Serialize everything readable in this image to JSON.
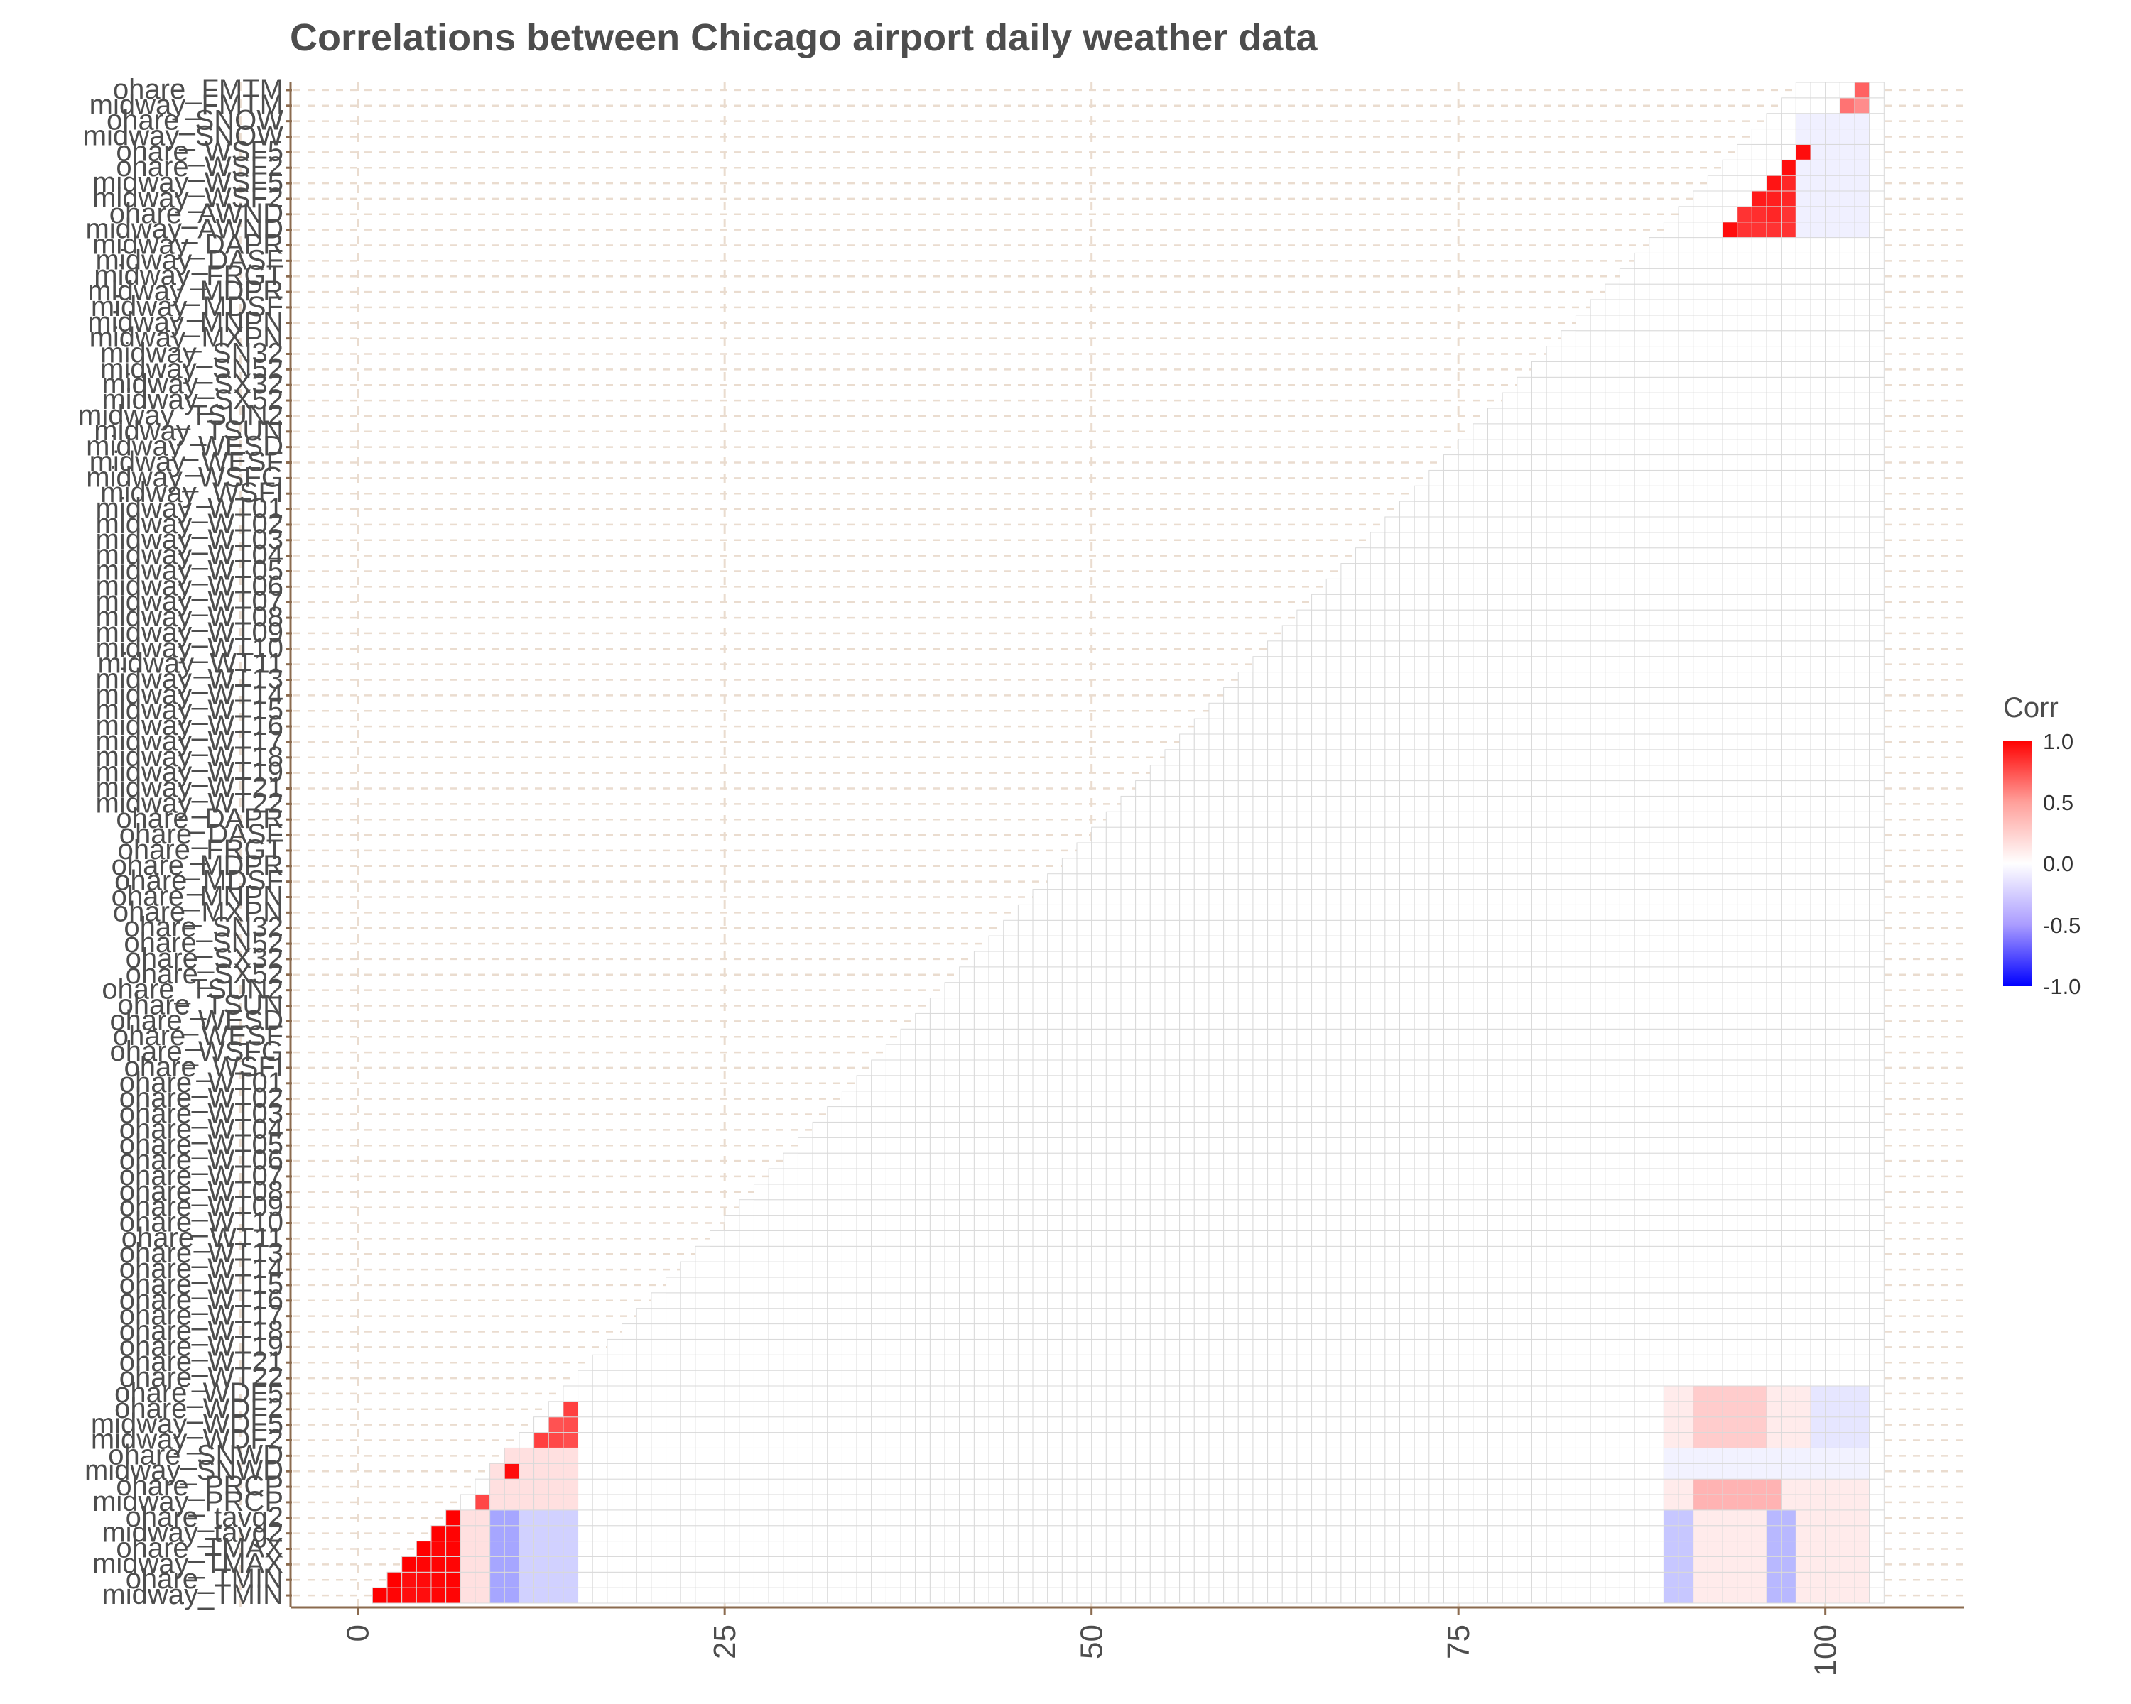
{
  "title": "Correlations between Chicago airport daily weather data",
  "chart_data": {
    "type": "heatmap",
    "title": "Correlations between Chicago airport daily weather data",
    "xlabel": "",
    "ylabel": "",
    "x_ticks": [
      0,
      25,
      50,
      75,
      100
    ],
    "xlim": [
      -4,
      107
    ],
    "y_labels": [
      "midway_TMIN",
      "ohare_TMIN",
      "midway_TMAX",
      "ohare_TMAX",
      "midway_tavg2",
      "ohare_tavg2",
      "midway_PRCP",
      "ohare_PRCP",
      "midway_SNWD",
      "ohare_SNWD",
      "midway_WDF2",
      "midway_WDF5",
      "ohare_WDF2",
      "ohare_WDF5",
      "ohare_WT22",
      "ohare_WT21",
      "ohare_WT19",
      "ohare_WT18",
      "ohare_WT17",
      "ohare_WT16",
      "ohare_WT15",
      "ohare_WT14",
      "ohare_WT13",
      "ohare_WT11",
      "ohare_WT10",
      "ohare_WT09",
      "ohare_WT08",
      "ohare_WT07",
      "ohare_WT06",
      "ohare_WT05",
      "ohare_WT04",
      "ohare_WT03",
      "ohare_WT02",
      "ohare_WT01",
      "ohare_WSFI",
      "ohare_WSFG",
      "ohare_WESF",
      "ohare_WESD",
      "ohare_TSUN",
      "ohare_TSUN2",
      "ohare_SX52",
      "ohare_SX32",
      "ohare_SN52",
      "ohare_SN32",
      "ohare_MXPN",
      "ohare_MNPN",
      "ohare_MDSF",
      "ohare_MDPR",
      "ohare_FRGT",
      "ohare_DASF",
      "ohare_DAPR",
      "midway_WT22",
      "midway_WT21",
      "midway_WT19",
      "midway_WT18",
      "midway_WT17",
      "midway_WT16",
      "midway_WT15",
      "midway_WT14",
      "midway_WT13",
      "midway_WT11",
      "midway_WT10",
      "midway_WT09",
      "midway_WT08",
      "midway_WT07",
      "midway_WT06",
      "midway_WT05",
      "midway_WT04",
      "midway_WT03",
      "midway_WT02",
      "midway_WT01",
      "midway_WSFI",
      "midway_WSFG",
      "midway_WESF",
      "midway_WESD",
      "midway_TSUN",
      "midway_TSUN2",
      "midway_SX52",
      "midway_SX32",
      "midway_SN52",
      "midway_SN32",
      "midway_MXPN",
      "midway_MNPN",
      "midway_MDSF",
      "midway_MDPR",
      "midway_FRGT",
      "midway_DASF",
      "midway_DAPR",
      "midway_AWND",
      "ohare_AWND",
      "midway_WSF2",
      "midway_WSF5",
      "ohare_WSF2",
      "ohare_WSF5",
      "midway_SNOW",
      "ohare_SNOW",
      "midway_FMTM",
      "ohare_FMTM"
    ],
    "highlighted_cells": [
      {
        "x": 0,
        "y": 0,
        "corr": 1.0
      },
      {
        "x": 1,
        "y": 0,
        "corr": 0.98
      },
      {
        "x": 1,
        "y": 1,
        "corr": 1.0
      },
      {
        "x": 2,
        "y": 0,
        "corr": 0.95
      },
      {
        "x": 2,
        "y": 1,
        "corr": 0.95
      },
      {
        "x": 2,
        "y": 2,
        "corr": 1.0
      },
      {
        "x": 3,
        "y": 0,
        "corr": 0.95
      },
      {
        "x": 3,
        "y": 1,
        "corr": 0.96
      },
      {
        "x": 3,
        "y": 2,
        "corr": 0.98
      },
      {
        "x": 3,
        "y": 3,
        "corr": 1.0
      },
      {
        "x": 4,
        "y": 0,
        "corr": 0.98
      },
      {
        "x": 4,
        "y": 1,
        "corr": 0.98
      },
      {
        "x": 4,
        "y": 2,
        "corr": 0.99
      },
      {
        "x": 4,
        "y": 3,
        "corr": 0.98
      },
      {
        "x": 4,
        "y": 4,
        "corr": 1.0
      },
      {
        "x": 5,
        "y": 0,
        "corr": 0.98
      },
      {
        "x": 5,
        "y": 1,
        "corr": 0.99
      },
      {
        "x": 5,
        "y": 2,
        "corr": 0.98
      },
      {
        "x": 5,
        "y": 3,
        "corr": 0.99
      },
      {
        "x": 5,
        "y": 4,
        "corr": 0.99
      },
      {
        "x": 5,
        "y": 5,
        "corr": 1.0
      },
      {
        "x": 7,
        "y": 6,
        "corr": 0.72
      },
      {
        "x": 9,
        "y": 8,
        "corr": 0.95
      },
      {
        "x": 11,
        "y": 10,
        "corr": 0.75
      },
      {
        "x": 12,
        "y": 10,
        "corr": 0.72
      },
      {
        "x": 12,
        "y": 11,
        "corr": 0.68
      },
      {
        "x": 13,
        "y": 10,
        "corr": 0.7
      },
      {
        "x": 13,
        "y": 11,
        "corr": 0.7
      },
      {
        "x": 13,
        "y": 12,
        "corr": 0.75
      },
      {
        "x": 92,
        "y": 88,
        "corr": 0.95
      },
      {
        "x": 93,
        "y": 88,
        "corr": 0.8
      },
      {
        "x": 93,
        "y": 89,
        "corr": 0.8
      },
      {
        "x": 94,
        "y": 88,
        "corr": 0.8
      },
      {
        "x": 94,
        "y": 89,
        "corr": 0.82
      },
      {
        "x": 94,
        "y": 90,
        "corr": 0.9
      },
      {
        "x": 95,
        "y": 88,
        "corr": 0.8
      },
      {
        "x": 95,
        "y": 89,
        "corr": 0.85
      },
      {
        "x": 95,
        "y": 90,
        "corr": 0.88
      },
      {
        "x": 95,
        "y": 91,
        "corr": 0.92
      },
      {
        "x": 96,
        "y": 88,
        "corr": 0.8
      },
      {
        "x": 96,
        "y": 89,
        "corr": 0.8
      },
      {
        "x": 96,
        "y": 90,
        "corr": 0.85
      },
      {
        "x": 96,
        "y": 91,
        "corr": 0.85
      },
      {
        "x": 96,
        "y": 92,
        "corr": 0.95
      },
      {
        "x": 97,
        "y": 93,
        "corr": 0.95
      },
      {
        "x": 100,
        "y": 96,
        "corr": 0.55
      },
      {
        "x": 101,
        "y": 96,
        "corr": 0.45
      },
      {
        "x": 101,
        "y": 97,
        "corr": 0.62
      }
    ],
    "legend": {
      "title": "Corr",
      "labels": [
        "1.0",
        "0.5",
        "0.0",
        "-0.5",
        "-1.0"
      ],
      "placement": "right",
      "colors": {
        "high": "#ff0000",
        "mid": "#ffffff",
        "low": "#0000ff"
      }
    },
    "grid": true
  }
}
